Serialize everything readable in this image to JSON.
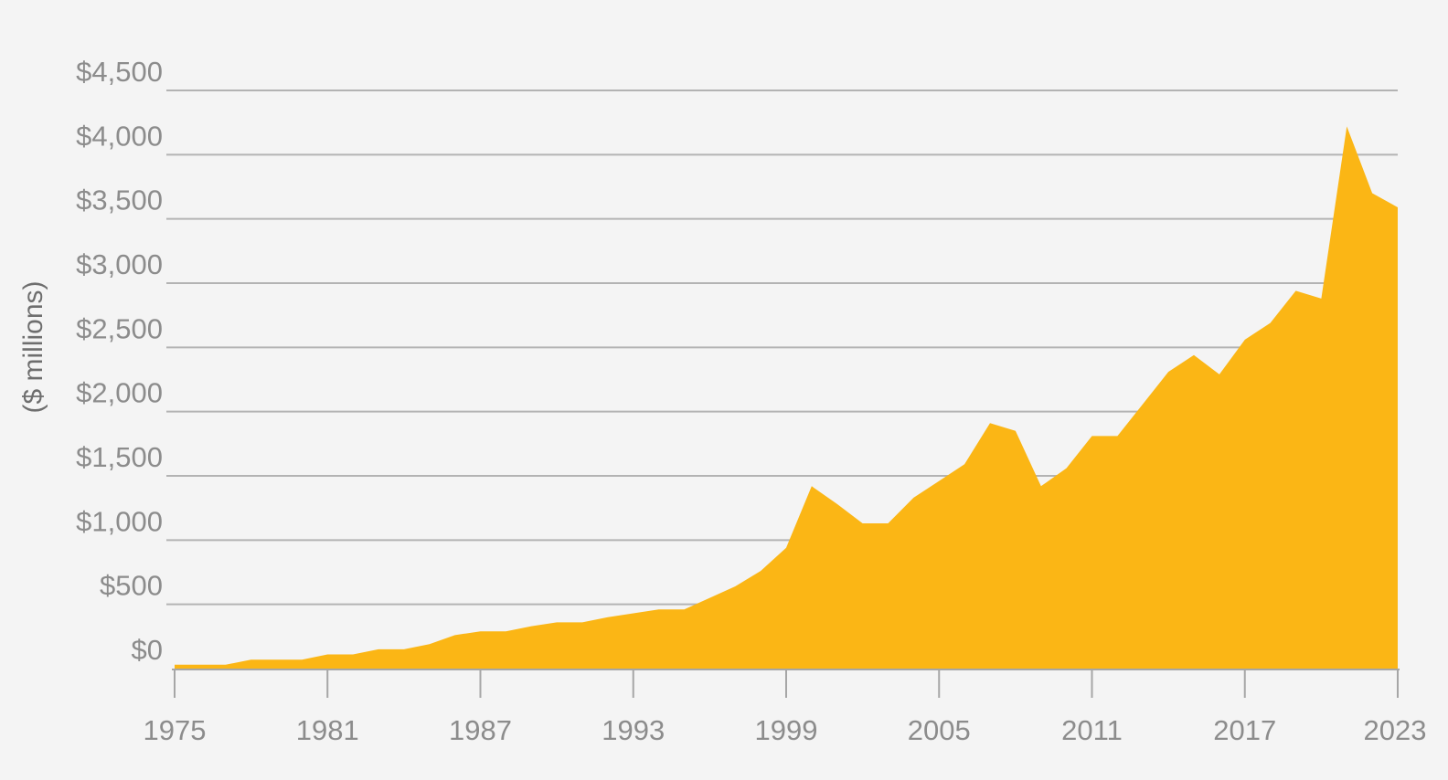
{
  "chart_data": {
    "type": "area",
    "title": "",
    "xlabel": "",
    "ylabel": "($ millions)",
    "x_tick_labels": [
      "1975",
      "1981",
      "1987",
      "1993",
      "1999",
      "2005",
      "2011",
      "2017",
      "2023"
    ],
    "y_tick_labels": [
      "$0",
      "$500",
      "$1,000",
      "$1,500",
      "$2,000",
      "$2,500",
      "$3,000",
      "$3,500",
      "$4,000",
      "$4,500"
    ],
    "xlim": [
      1975,
      2023
    ],
    "ylim": [
      0,
      4500
    ],
    "grid": "horizontal",
    "legend": "none",
    "color": "#fbb615",
    "x": [
      1975,
      1976,
      1977,
      1978,
      1979,
      1980,
      1981,
      1982,
      1983,
      1984,
      1985,
      1986,
      1987,
      1988,
      1989,
      1990,
      1991,
      1992,
      1993,
      1994,
      1995,
      1996,
      1997,
      1998,
      1999,
      2000,
      2001,
      2002,
      2003,
      2004,
      2005,
      2006,
      2007,
      2008,
      2009,
      2010,
      2011,
      2012,
      2013,
      2014,
      2015,
      2016,
      2017,
      2018,
      2019,
      2020,
      2021,
      2022,
      2023
    ],
    "values": [
      30,
      30,
      30,
      70,
      70,
      70,
      110,
      110,
      150,
      150,
      190,
      260,
      290,
      290,
      330,
      360,
      360,
      400,
      430,
      460,
      460,
      550,
      640,
      760,
      940,
      1420,
      1280,
      1130,
      1130,
      1330,
      1460,
      1590,
      1910,
      1850,
      1420,
      1560,
      1810,
      1810,
      2060,
      2310,
      2440,
      2290,
      2560,
      2690,
      2940,
      2880,
      4220,
      3700,
      3590
    ]
  }
}
